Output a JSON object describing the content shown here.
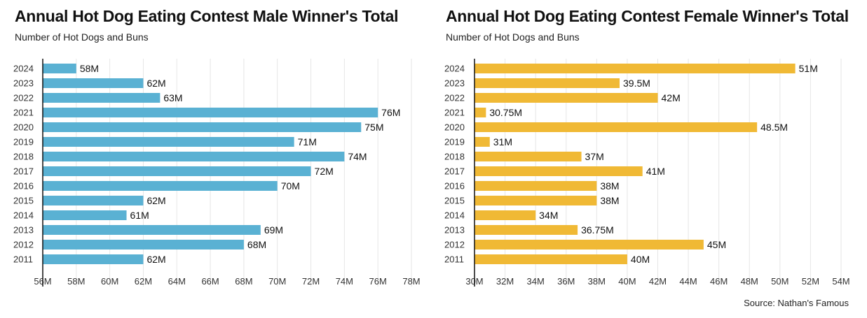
{
  "source": "Source: Nathan's Famous",
  "chart_data": [
    {
      "type": "bar",
      "orientation": "horizontal",
      "title": "Annual Hot Dog Eating Contest Male Winner's Total",
      "subtitle": "Number of Hot Dogs and Buns",
      "color": "#5ab1d3",
      "categories": [
        "2024",
        "2023",
        "2022",
        "2021",
        "2020",
        "2019",
        "2018",
        "2017",
        "2016",
        "2015",
        "2014",
        "2013",
        "2012",
        "2011"
      ],
      "values": [
        58,
        62,
        63,
        76,
        75,
        71,
        74,
        72,
        70,
        62,
        61,
        69,
        68,
        62
      ],
      "value_labels": [
        "58M",
        "62M",
        "63M",
        "76M",
        "75M",
        "71M",
        "74M",
        "72M",
        "70M",
        "62M",
        "61M",
        "69M",
        "68M",
        "62M"
      ],
      "xlim": [
        56,
        78
      ],
      "xticks": [
        56,
        58,
        60,
        62,
        64,
        66,
        68,
        70,
        72,
        74,
        76,
        78
      ],
      "xtick_labels": [
        "56M",
        "58M",
        "60M",
        "62M",
        "64M",
        "66M",
        "68M",
        "70M",
        "72M",
        "74M",
        "76M",
        "78M"
      ],
      "grid": "vertical"
    },
    {
      "type": "bar",
      "orientation": "horizontal",
      "title": "Annual Hot Dog Eating Contest Female Winner's Total",
      "subtitle": "Number of Hot Dogs and Buns",
      "color": "#f0b935",
      "categories": [
        "2024",
        "2023",
        "2022",
        "2021",
        "2020",
        "2019",
        "2018",
        "2017",
        "2016",
        "2015",
        "2014",
        "2013",
        "2012",
        "2011"
      ],
      "values": [
        51,
        39.5,
        42,
        30.75,
        48.5,
        31,
        37,
        41,
        38,
        38,
        34,
        36.75,
        45,
        40
      ],
      "value_labels": [
        "51M",
        "39.5M",
        "42M",
        "30.75M",
        "48.5M",
        "31M",
        "37M",
        "41M",
        "38M",
        "38M",
        "34M",
        "36.75M",
        "45M",
        "40M"
      ],
      "xlim": [
        30,
        54
      ],
      "xticks": [
        30,
        32,
        34,
        36,
        38,
        40,
        42,
        44,
        46,
        48,
        50,
        52,
        54
      ],
      "xtick_labels": [
        "30M",
        "32M",
        "34M",
        "36M",
        "38M",
        "40M",
        "42M",
        "44M",
        "46M",
        "48M",
        "50M",
        "52M",
        "54M"
      ],
      "grid": "vertical"
    }
  ]
}
